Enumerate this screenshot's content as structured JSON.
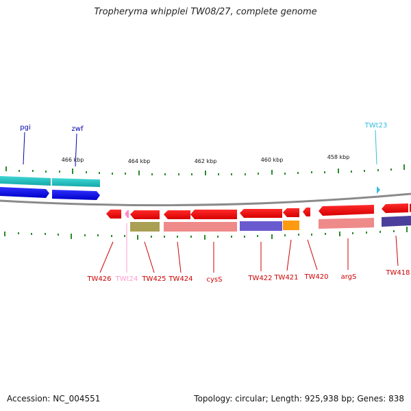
{
  "title": "Tropheryma whipplei TW08/27, complete genome",
  "footer": {
    "accession": "Accession: NC_004551",
    "stats": "Topology: circular; Length: 925,938 bp; Genes: 838"
  },
  "scale_labels": [
    "466 kbp",
    "464 kbp",
    "462 kbp",
    "460 kbp",
    "458 kbp"
  ],
  "genes_top": [
    "pgi",
    "zwf",
    "TWt23"
  ],
  "genes_bottom": [
    "TW426",
    "TWt24",
    "TW425",
    "TW424",
    "cysS",
    "TW422",
    "TW421",
    "TW420",
    "argS",
    "TW418"
  ],
  "colors": {
    "forward_gene": "#1515e6",
    "forward_cds": "#1fbdbd",
    "reverse_gene": "#ee0000",
    "trna_top": "#33bbdd",
    "trna_bottom": "#ff88cc",
    "tick": "#2a8a2a",
    "backbone": "#888888"
  }
}
